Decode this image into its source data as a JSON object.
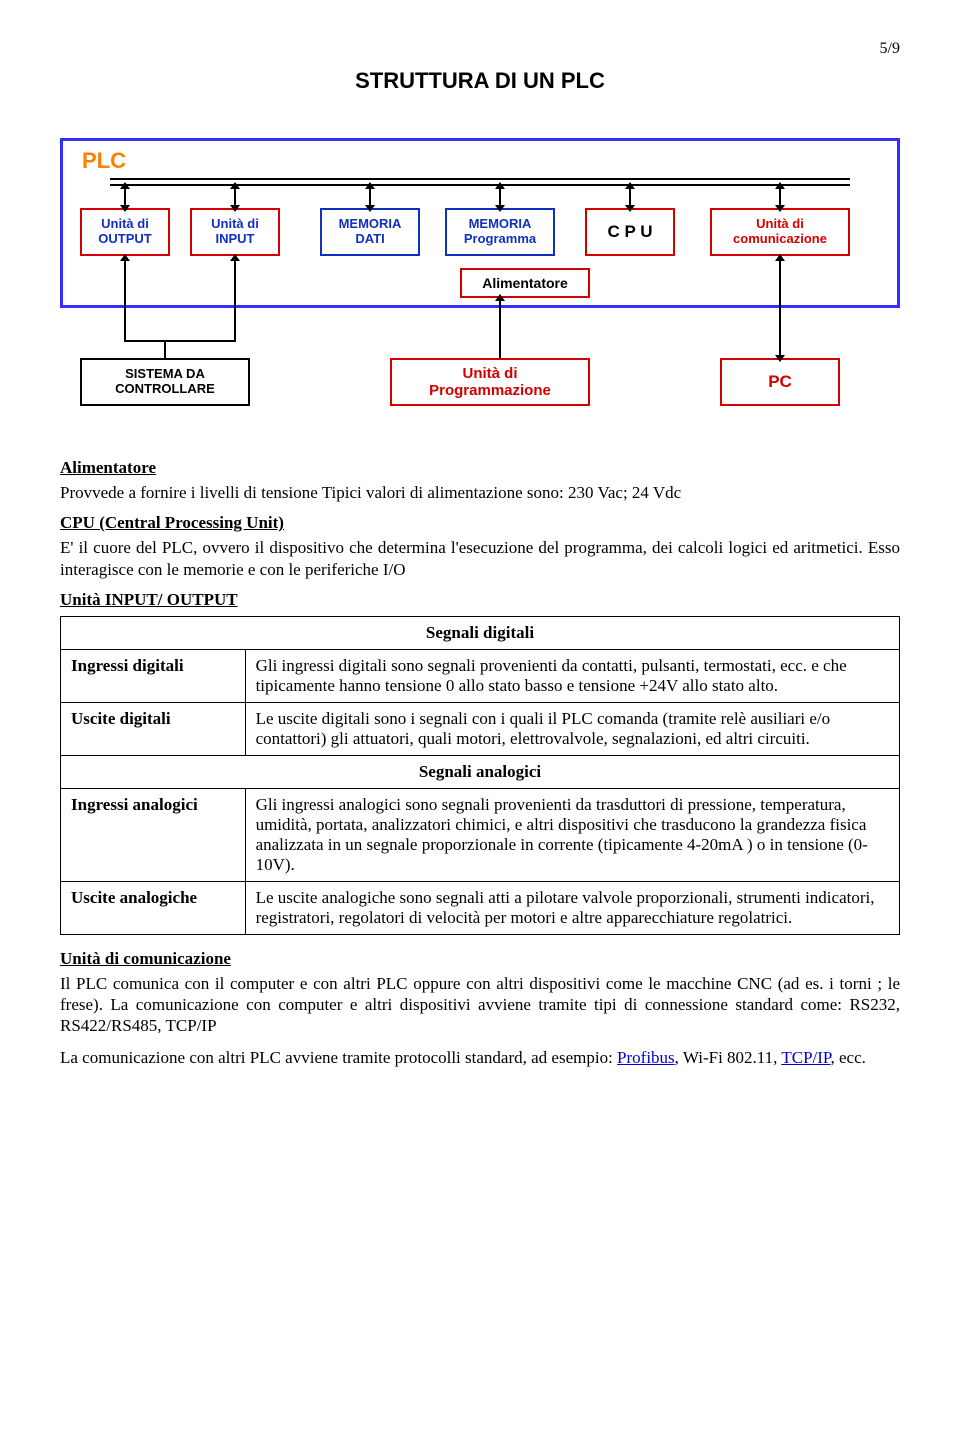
{
  "page_number": "5/9",
  "title": "STRUTTURA DI UN PLC",
  "diagram": {
    "plc_label": "PLC",
    "colors": {
      "plc_border": "#3030ff",
      "red_border": "#d40000",
      "blue_border": "#1030c0",
      "black_border": "#000000",
      "orange_text": "#ff8000"
    },
    "boxes": {
      "output": "Unità di\nOUTPUT",
      "input": "Unità di\nINPUT",
      "mem_dati": "MEMORIA\nDATI",
      "mem_prog": "MEMORIA\nProgramma",
      "cpu": "C P U",
      "comm": "Unità di\ncomunicazione",
      "aliment": "Alimentatore",
      "sistema": "SISTEMA DA\nCONTROLLARE",
      "prog_unit": "Unità di\nProgrammazione",
      "pc": "PC"
    }
  },
  "sections": {
    "alimentatore": {
      "h": "Alimentatore",
      "p": "Provvede a fornire i livelli di tensione Tipici valori di alimentazione sono:  230 Vac;   24 Vdc"
    },
    "cpu": {
      "h": "CPU  (Central Processing Unit)",
      "p": "E' il cuore del PLC, ovvero il dispositivo che determina l'esecuzione del programma, dei calcoli logici ed aritmetici. Esso interagisce con le memorie e con  le periferiche I/O"
    },
    "io_h": "Unità  INPUT/ OUTPUT"
  },
  "table": {
    "hdr1": "Segnali digitali",
    "r1_l": "Ingressi digitali",
    "r1_t": "Gli ingressi digitali sono segnali provenienti da contatti, pulsanti, termostati, ecc. e che tipicamente hanno tensione  0 allo stato basso e tensione +24V allo stato alto.",
    "r2_l": "Uscite digitali",
    "r2_t": "Le uscite digitali sono i segnali con i quali il PLC comanda (tramite relè ausiliari e/o contattori) gli attuatori, quali motori, elettrovalvole, segnalazioni, ed altri circuiti.",
    "hdr2": "Segnali analogici",
    "r3_l": "Ingressi analogici",
    "r3_t": "Gli ingressi analogici sono segnali provenienti da trasduttori di pressione, temperatura, umidità, portata, analizzatori chimici,  e altri dispositivi che trasducono la grandezza fisica analizzata in un segnale proporzionale in corrente (tipicamente 4-20mA ) o in tensione (0-10V).",
    "r4_l": "Uscite analogiche",
    "r4_t": "Le uscite analogiche sono segnali atti a pilotare valvole proporzionali, strumenti indicatori, registratori, regolatori di velocità per motori e altre apparecchiature regolatrici."
  },
  "comm": {
    "h": "Unità di comunicazione",
    "p1a": "Il PLC comunica con il computer e con altri PLC oppure con altri dispositivi come le macchine CNC (ad es. i torni ;  le frese).   La comunicazione con computer e altri dispositivi avviene tramite tipi di connessione standard come:  RS232, RS422/RS485, TCP/IP",
    "p2a": "La comunicazione con altri PLC avviene tramite protocolli standard, ad esempio: ",
    "link1": "Profibus",
    "p2b": ",  Wi-Fi 802.11,  ",
    "link2": "TCP/IP",
    "p2c": ", ecc."
  }
}
